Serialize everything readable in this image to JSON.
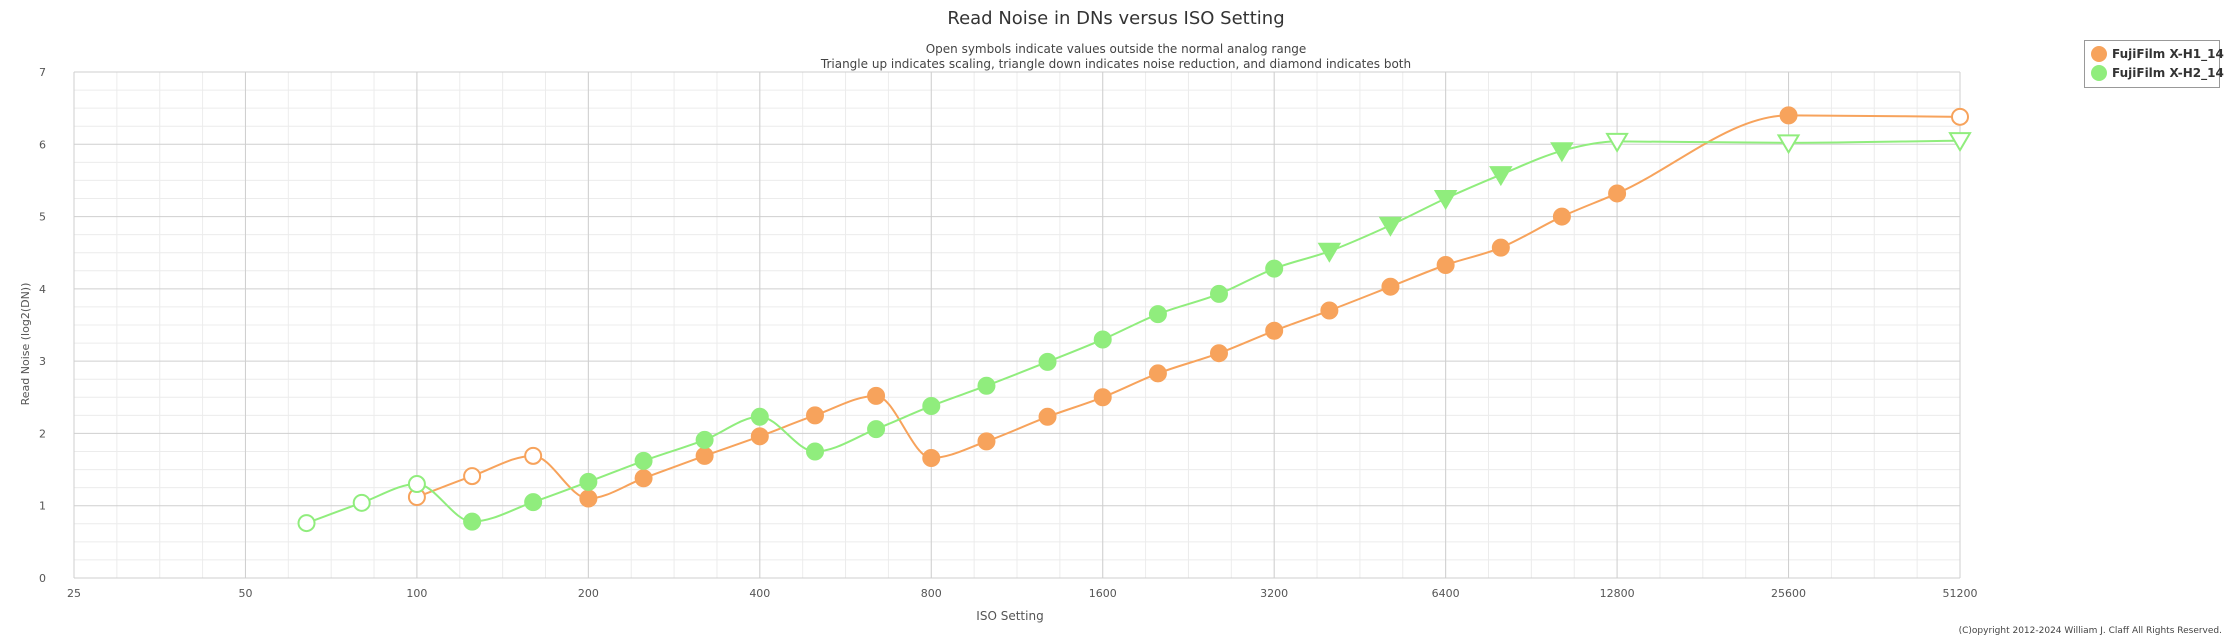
{
  "colors": {
    "h1": "#f7a35c",
    "h1_dark": "#f29649",
    "h2": "#90ed7d",
    "h2_dark": "#82dc6d",
    "grid_major": "#cfcfcf",
    "grid_minor": "#ececec"
  },
  "chart_data": {
    "type": "line",
    "title": "Read Noise in DNs versus ISO Setting",
    "subtitle_lines": [
      "Open symbols indicate values outside the normal analog range",
      "Triangle up indicates scaling, triangle down indicates noise reduction, and diamond indicates both"
    ],
    "xlabel": "ISO Setting",
    "ylabel": "Read Noise (log2(DN))",
    "x_scale": "log2",
    "x_ticks": [
      25,
      50,
      100,
      200,
      400,
      800,
      1600,
      3200,
      6400,
      12800,
      25600,
      51200
    ],
    "xlim": [
      25,
      51200
    ],
    "ylim": [
      0,
      7
    ],
    "y_ticks": [
      0,
      1,
      2,
      3,
      4,
      5,
      6,
      7
    ],
    "grid": true,
    "legend_position": "top-right",
    "series": [
      {
        "name": "FujiFilm X-H1_14",
        "color": "#f7a35c",
        "points": [
          {
            "x": 100,
            "y": 1.12,
            "symbol": "circle",
            "open": true
          },
          {
            "x": 125,
            "y": 1.41,
            "symbol": "circle",
            "open": true
          },
          {
            "x": 160,
            "y": 1.69,
            "symbol": "circle",
            "open": true
          },
          {
            "x": 200,
            "y": 1.1,
            "symbol": "circle",
            "open": false
          },
          {
            "x": 250,
            "y": 1.38,
            "symbol": "circle",
            "open": false
          },
          {
            "x": 320,
            "y": 1.69,
            "symbol": "circle",
            "open": false
          },
          {
            "x": 400,
            "y": 1.96,
            "symbol": "circle",
            "open": false
          },
          {
            "x": 500,
            "y": 2.25,
            "symbol": "circle",
            "open": false
          },
          {
            "x": 640,
            "y": 2.52,
            "symbol": "circle",
            "open": false
          },
          {
            "x": 800,
            "y": 1.66,
            "symbol": "circle",
            "open": false
          },
          {
            "x": 1000,
            "y": 1.89,
            "symbol": "circle",
            "open": false
          },
          {
            "x": 1280,
            "y": 2.23,
            "symbol": "circle",
            "open": false
          },
          {
            "x": 1600,
            "y": 2.5,
            "symbol": "circle",
            "open": false
          },
          {
            "x": 2000,
            "y": 2.83,
            "symbol": "circle",
            "open": false
          },
          {
            "x": 2560,
            "y": 3.11,
            "symbol": "circle",
            "open": false
          },
          {
            "x": 3200,
            "y": 3.42,
            "symbol": "circle",
            "open": false
          },
          {
            "x": 4000,
            "y": 3.7,
            "symbol": "circle",
            "open": false
          },
          {
            "x": 5120,
            "y": 4.03,
            "symbol": "circle",
            "open": false
          },
          {
            "x": 6400,
            "y": 4.33,
            "symbol": "circle",
            "open": false
          },
          {
            "x": 8000,
            "y": 4.57,
            "symbol": "circle",
            "open": false
          },
          {
            "x": 10240,
            "y": 5.0,
            "symbol": "circle",
            "open": false
          },
          {
            "x": 12800,
            "y": 5.32,
            "symbol": "circle",
            "open": false
          },
          {
            "x": 25600,
            "y": 6.4,
            "symbol": "circle",
            "open": false
          },
          {
            "x": 51200,
            "y": 6.38,
            "symbol": "circle",
            "open": true
          }
        ]
      },
      {
        "name": "FujiFilm X-H2_14",
        "color": "#90ed7d",
        "points": [
          {
            "x": 64,
            "y": 0.76,
            "symbol": "circle",
            "open": true
          },
          {
            "x": 80,
            "y": 1.04,
            "symbol": "circle",
            "open": true
          },
          {
            "x": 100,
            "y": 1.3,
            "symbol": "circle",
            "open": true
          },
          {
            "x": 125,
            "y": 0.78,
            "symbol": "circle",
            "open": false
          },
          {
            "x": 160,
            "y": 1.05,
            "symbol": "circle",
            "open": false
          },
          {
            "x": 200,
            "y": 1.33,
            "symbol": "circle",
            "open": false
          },
          {
            "x": 250,
            "y": 1.62,
            "symbol": "circle",
            "open": false
          },
          {
            "x": 320,
            "y": 1.91,
            "symbol": "circle",
            "open": false
          },
          {
            "x": 400,
            "y": 2.23,
            "symbol": "circle",
            "open": false
          },
          {
            "x": 500,
            "y": 1.75,
            "symbol": "circle",
            "open": false
          },
          {
            "x": 640,
            "y": 2.06,
            "symbol": "circle",
            "open": false
          },
          {
            "x": 800,
            "y": 2.38,
            "symbol": "circle",
            "open": false
          },
          {
            "x": 1000,
            "y": 2.66,
            "symbol": "circle",
            "open": false
          },
          {
            "x": 1280,
            "y": 2.99,
            "symbol": "circle",
            "open": false
          },
          {
            "x": 1600,
            "y": 3.3,
            "symbol": "circle",
            "open": false
          },
          {
            "x": 2000,
            "y": 3.65,
            "symbol": "circle",
            "open": false
          },
          {
            "x": 2560,
            "y": 3.93,
            "symbol": "circle",
            "open": false
          },
          {
            "x": 3200,
            "y": 4.28,
            "symbol": "circle",
            "open": false
          },
          {
            "x": 4000,
            "y": 4.52,
            "symbol": "triangle-down",
            "open": false
          },
          {
            "x": 5120,
            "y": 4.88,
            "symbol": "triangle-down",
            "open": false
          },
          {
            "x": 6400,
            "y": 5.25,
            "symbol": "triangle-down",
            "open": false
          },
          {
            "x": 8000,
            "y": 5.58,
            "symbol": "triangle-down",
            "open": false
          },
          {
            "x": 10240,
            "y": 5.91,
            "symbol": "triangle-down",
            "open": false
          },
          {
            "x": 12800,
            "y": 6.04,
            "symbol": "triangle-down",
            "open": true
          },
          {
            "x": 25600,
            "y": 6.02,
            "symbol": "triangle-down",
            "open": true
          },
          {
            "x": 51200,
            "y": 6.05,
            "symbol": "triangle-down",
            "open": true
          }
        ]
      }
    ]
  },
  "legend": {
    "items": [
      {
        "label": "FujiFilm X-H1_14",
        "color": "#f7a35c"
      },
      {
        "label": "FujiFilm X-H2_14",
        "color": "#90ed7d"
      }
    ]
  },
  "copyright": "(C)opyright 2012-2024 William J. Claff All Rights Reserved."
}
